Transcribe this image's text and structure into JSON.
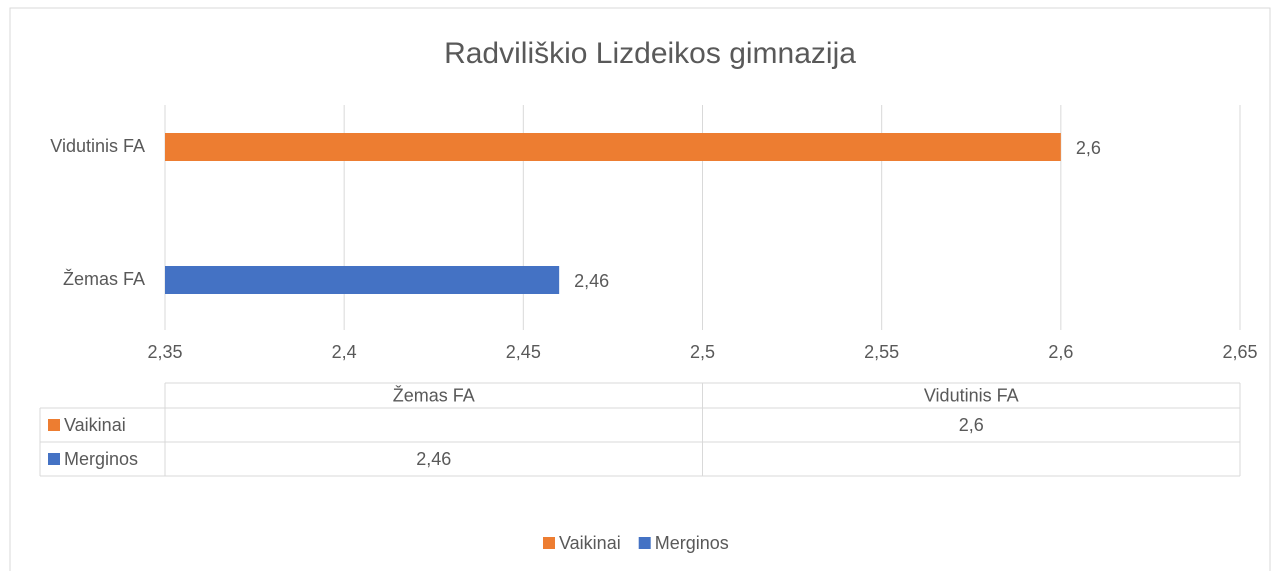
{
  "chart_data": {
    "type": "barh",
    "title": "Radviliškio Lizdeikos gimnazija",
    "categories": [
      "Žemas FA",
      "Vidutinis FA"
    ],
    "series": [
      {
        "name": "Vaikinai",
        "color": "#ed7d31",
        "values": [
          null,
          2.6
        ],
        "value_labels": [
          null,
          "2,6"
        ]
      },
      {
        "name": "Merginos",
        "color": "#4472c4",
        "values": [
          2.46,
          null
        ],
        "value_labels": [
          "2,46",
          null
        ]
      }
    ],
    "xlim": [
      2.35,
      2.65
    ],
    "xticks": [
      {
        "value": 2.35,
        "label": "2,35"
      },
      {
        "value": 2.4,
        "label": "2,4"
      },
      {
        "value": 2.45,
        "label": "2,45"
      },
      {
        "value": 2.5,
        "label": "2,5"
      },
      {
        "value": 2.55,
        "label": "2,55"
      },
      {
        "value": 2.6,
        "label": "2,6"
      },
      {
        "value": 2.65,
        "label": "2,65"
      }
    ],
    "grid": true,
    "data_table": true,
    "legend": "bottom"
  }
}
